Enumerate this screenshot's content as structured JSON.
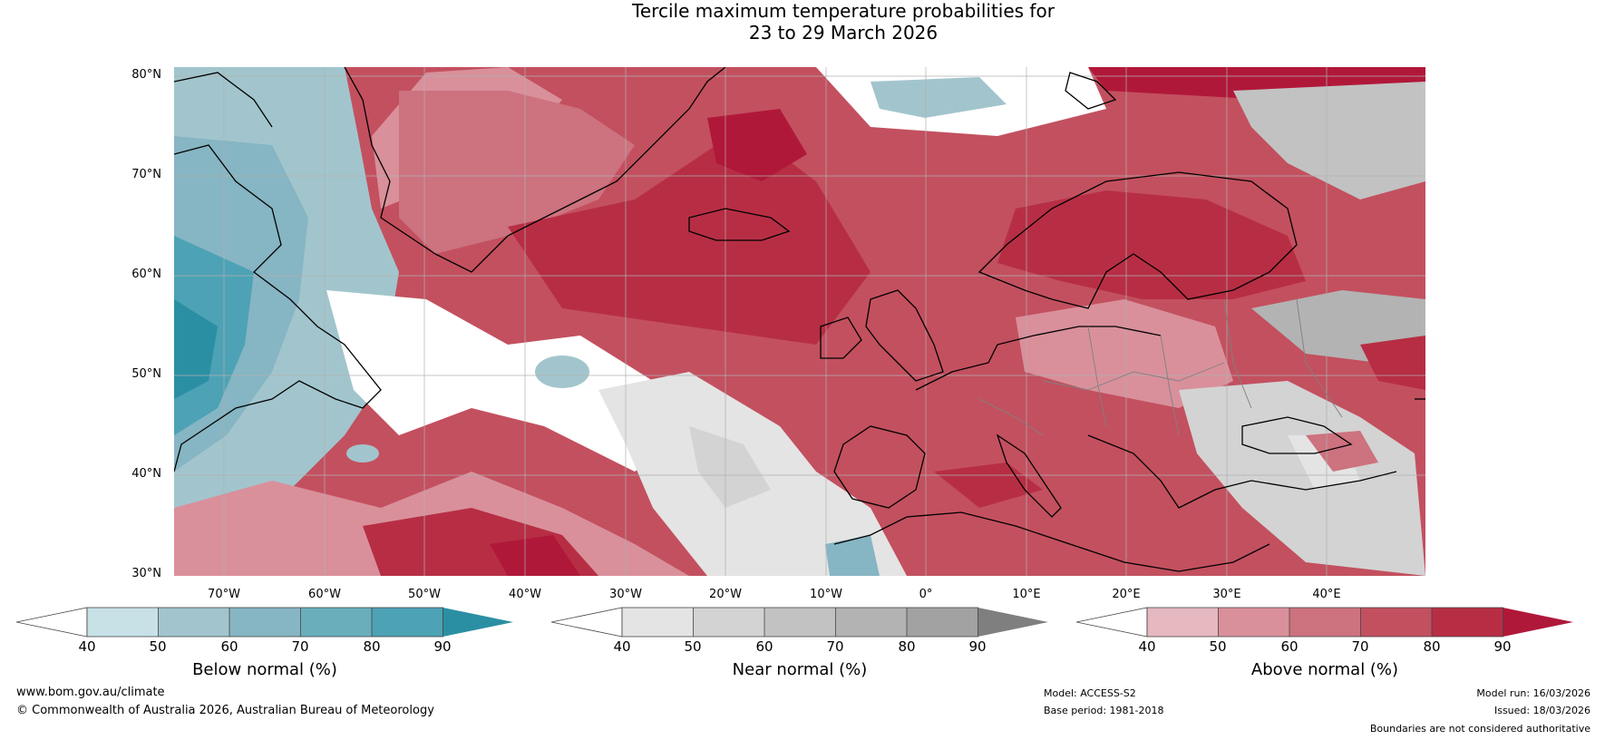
{
  "title": {
    "line1": "Tercile maximum temperature probabilities for",
    "line2": "23 to 29 March 2026"
  },
  "map": {
    "lat_labels": [
      "80°N",
      "70°N",
      "60°N",
      "50°N",
      "40°N",
      "30°N"
    ],
    "lon_labels": [
      "70°W",
      "60°W",
      "50°W",
      "40°W",
      "30°W",
      "20°W",
      "10°W",
      "0°",
      "10°E",
      "20°E",
      "30°E",
      "40°E"
    ],
    "coastline_color": "#000000",
    "border_color": "#808080",
    "grid_color": "#b0b0b0"
  },
  "colorbars": [
    {
      "name": "below",
      "label": "Below normal (%)",
      "ticks": [
        "40",
        "50",
        "60",
        "70",
        "80",
        "90"
      ],
      "colors": [
        "#ffffff",
        "#c7e1e7",
        "#a2c5cd",
        "#86b5c3",
        "#6aaebc",
        "#4da2b5",
        "#2b8fa3"
      ]
    },
    {
      "name": "near",
      "label": "Near normal (%)",
      "ticks": [
        "40",
        "50",
        "60",
        "70",
        "80",
        "90"
      ],
      "colors": [
        "#ffffff",
        "#e4e4e4",
        "#d3d3d3",
        "#c2c2c2",
        "#b3b3b3",
        "#a2a2a2",
        "#7f7f7f"
      ]
    },
    {
      "name": "above",
      "label": "Above normal (%)",
      "ticks": [
        "40",
        "50",
        "60",
        "70",
        "80",
        "90"
      ],
      "colors": [
        "#ffffff",
        "#e6b8c0",
        "#d9909b",
        "#cd727f",
        "#c3505f",
        "#b72e44",
        "#b0183a"
      ]
    }
  ],
  "footer": {
    "website": "www.bom.gov.au/climate",
    "copyright": "© Commonwealth of Australia 2026, Australian Bureau of Meteorology",
    "model": "Model: ACCESS-S2",
    "base_period": "Base period: 1981-2018",
    "model_run": "Model run: 16/03/2026",
    "issued": "Issued: 18/03/2026",
    "disclaimer": "Boundaries are not considered authoritative"
  }
}
